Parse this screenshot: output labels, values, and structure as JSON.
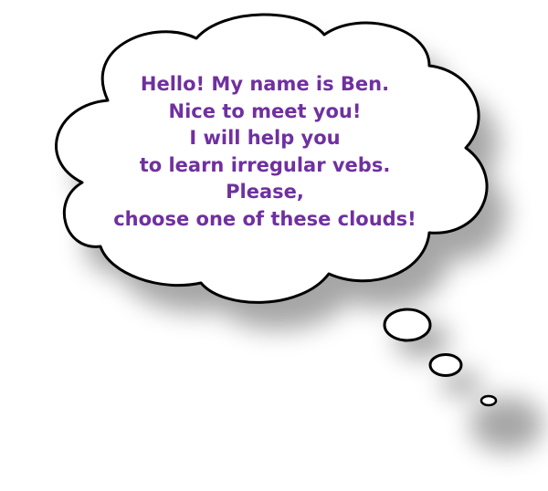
{
  "thought_bubble": {
    "lines": [
      "Hello! My name is Ben.",
      "Nice to meet you!",
      "I will help you",
      "to learn irregular vebs.",
      "Please,",
      "choose one of these clouds!"
    ],
    "text_color": "#7030a0",
    "fill_color": "#ffffff",
    "outline_color": "#000000"
  }
}
